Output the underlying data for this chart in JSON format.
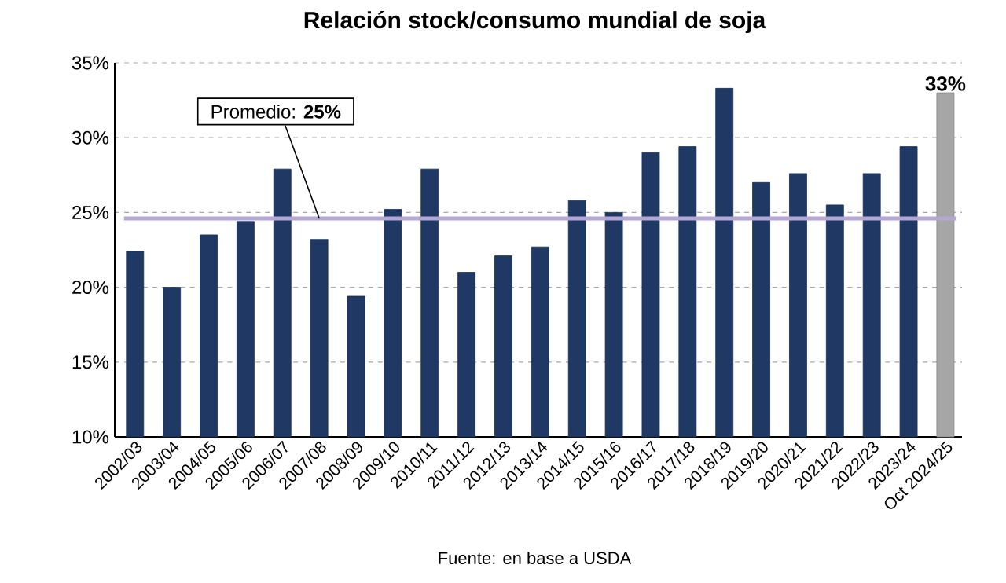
{
  "chart_data": {
    "type": "bar",
    "title": "Relación stock/consumo mundial de soja",
    "categories": [
      "2002/03",
      "2003/04",
      "2004/05",
      "2005/06",
      "2006/07",
      "2007/08",
      "2008/09",
      "2009/10",
      "2010/11",
      "2011/12",
      "2012/13",
      "2013/14",
      "2014/15",
      "2015/16",
      "2016/17",
      "2017/18",
      "2018/19",
      "2019/20",
      "2020/21",
      "2021/22",
      "2022/23",
      "2023/24",
      "Oct 2024/25"
    ],
    "values": [
      22.4,
      20.0,
      23.5,
      24.4,
      27.9,
      23.2,
      19.4,
      25.2,
      27.9,
      21.0,
      22.1,
      22.7,
      25.8,
      25.0,
      29.0,
      29.4,
      33.3,
      27.0,
      27.6,
      25.5,
      27.6,
      29.4,
      33
    ],
    "colors": [
      "#1f3864",
      "#1f3864",
      "#1f3864",
      "#1f3864",
      "#1f3864",
      "#1f3864",
      "#1f3864",
      "#1f3864",
      "#1f3864",
      "#1f3864",
      "#1f3864",
      "#1f3864",
      "#1f3864",
      "#1f3864",
      "#1f3864",
      "#1f3864",
      "#1f3864",
      "#1f3864",
      "#1f3864",
      "#1f3864",
      "#1f3864",
      "#1f3864",
      "#a6a6a6"
    ],
    "value_labels": [
      null,
      null,
      null,
      null,
      null,
      null,
      null,
      null,
      null,
      null,
      null,
      null,
      null,
      null,
      null,
      null,
      null,
      null,
      null,
      null,
      null,
      null,
      "33%"
    ],
    "ylim": [
      10,
      35
    ],
    "yticks": [
      {
        "value": 10,
        "label": "10%"
      },
      {
        "value": 15,
        "label": "15%"
      },
      {
        "value": 20,
        "label": "20%"
      },
      {
        "value": 25,
        "label": "25%"
      },
      {
        "value": 30,
        "label": "30%"
      },
      {
        "value": 35,
        "label": "35%"
      }
    ],
    "grid": "y",
    "ref_lines": [
      {
        "axis": "y",
        "value": 24.6,
        "label": "Promedio: **25%**",
        "color": "#b4a7d6"
      }
    ],
    "annotations": [
      "Fuente: en base a USDA"
    ]
  }
}
